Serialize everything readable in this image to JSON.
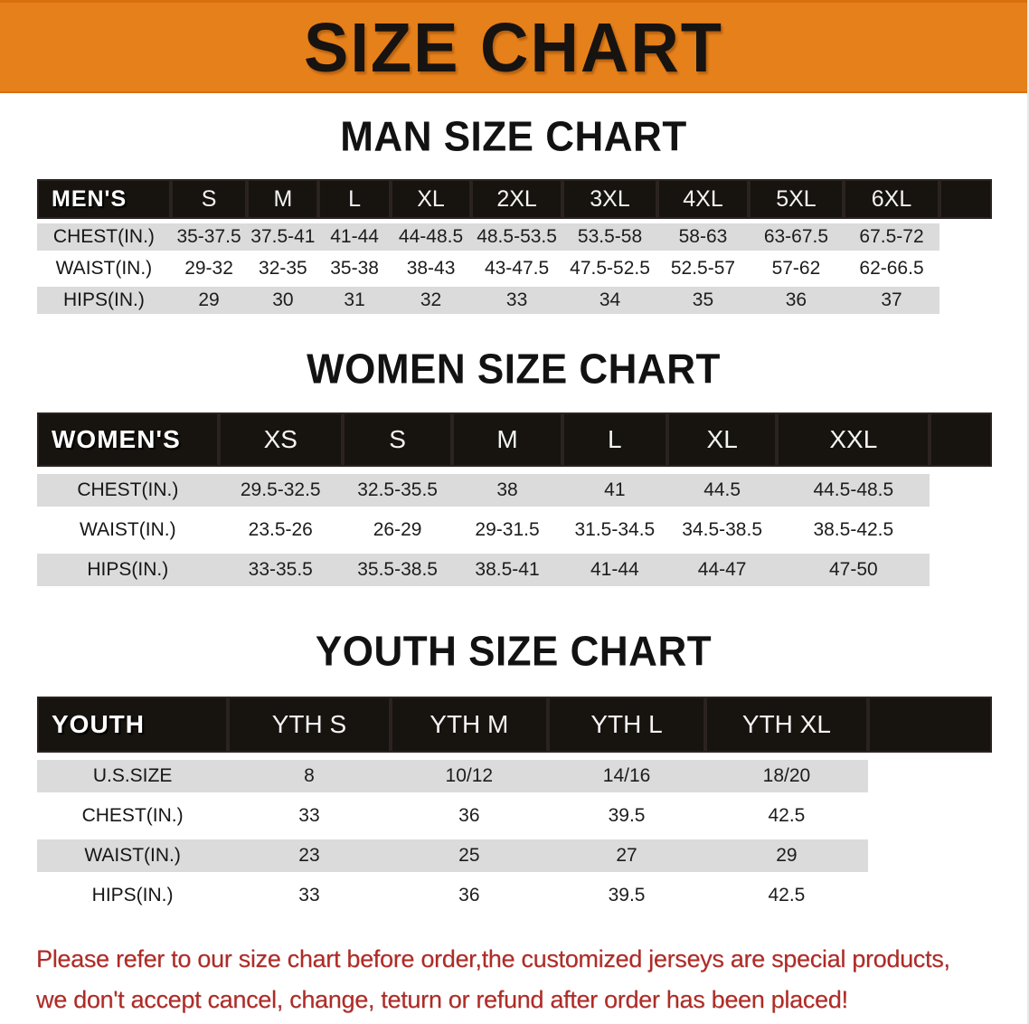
{
  "banner": {
    "title": "SIZE CHART",
    "bg_color": "#E6801B",
    "text_color": "#171310"
  },
  "sections": [
    {
      "heading": "MAN SIZE CHART",
      "label": "MEN'S",
      "columns": [
        "S",
        "M",
        "L",
        "XL",
        "2XL",
        "3XL",
        "4XL",
        "5XL",
        "6XL"
      ],
      "rows": [
        {
          "label": "CHEST(IN.)",
          "values": [
            "35-37.5",
            "37.5-41",
            "41-44",
            "44-48.5",
            "48.5-53.5",
            "53.5-58",
            "58-63",
            "63-67.5",
            "67.5-72"
          ]
        },
        {
          "label": "WAIST(IN.)",
          "values": [
            "29-32",
            "32-35",
            "35-38",
            "38-43",
            "43-47.5",
            "47.5-52.5",
            "52.5-57",
            "57-62",
            "62-66.5"
          ]
        },
        {
          "label": "HIPS(IN.)",
          "values": [
            "29",
            "30",
            "31",
            "32",
            "33",
            "34",
            "35",
            "36",
            "37"
          ]
        }
      ]
    },
    {
      "heading": "WOMEN SIZE CHART",
      "label": "WOMEN'S",
      "columns": [
        "XS",
        "S",
        "M",
        "L",
        "XL",
        "XXL"
      ],
      "rows": [
        {
          "label": "CHEST(IN.)",
          "values": [
            "29.5-32.5",
            "32.5-35.5",
            "38",
            "41",
            "44.5",
            "44.5-48.5"
          ]
        },
        {
          "label": "WAIST(IN.)",
          "values": [
            "23.5-26",
            "26-29",
            "29-31.5",
            "31.5-34.5",
            "34.5-38.5",
            "38.5-42.5"
          ]
        },
        {
          "label": "HIPS(IN.)",
          "values": [
            "33-35.5",
            "35.5-38.5",
            "38.5-41",
            "41-44",
            "44-47",
            "47-50"
          ]
        }
      ]
    },
    {
      "heading": "YOUTH SIZE CHART",
      "label": "YOUTH",
      "columns": [
        "YTH S",
        "YTH M",
        "YTH L",
        "YTH XL"
      ],
      "rows": [
        {
          "label": "U.S.SIZE",
          "values": [
            "8",
            "10/12",
            "14/16",
            "18/20"
          ]
        },
        {
          "label": "CHEST(IN.)",
          "values": [
            "33",
            "36",
            "39.5",
            "42.5"
          ]
        },
        {
          "label": "WAIST(IN.)",
          "values": [
            "23",
            "25",
            "27",
            "29"
          ]
        },
        {
          "label": "HIPS(IN.)",
          "values": [
            "33",
            "36",
            "39.5",
            "42.5"
          ]
        }
      ]
    }
  ],
  "notice": {
    "lines": [
      "Please refer to our size chart before order,the customized jerseys are special products,",
      "we don't accept cancel, change, teturn or refund after order has been placed!"
    ],
    "color": "#AF2B26"
  },
  "colors": {
    "banner_orange": "#E6801B",
    "header_black": "#17130F",
    "row_gray": "#DBDBDB",
    "row_white": "#FFFFFF"
  }
}
